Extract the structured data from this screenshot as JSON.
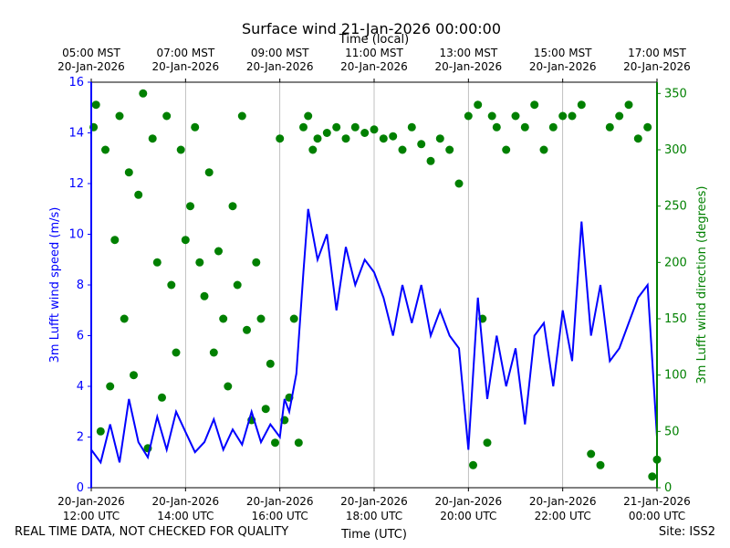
{
  "chart_data": {
    "type": "line+scatter",
    "title": "Surface wind 21-Jan-2026 00:00:00",
    "top_axis_label": "Time (local)",
    "xlabel": "Time (UTC)",
    "ylabel_left": "3m Lufft wind speed (m/s)",
    "ylabel_right": "3m Lufft wind direction (degrees)",
    "x_range_hours": [
      12,
      24
    ],
    "ylim_left": [
      0,
      16
    ],
    "ylim_right": [
      0,
      360
    ],
    "left_ticks": [
      0,
      2,
      4,
      6,
      8,
      10,
      12,
      14,
      16
    ],
    "right_ticks": [
      0,
      50,
      100,
      150,
      200,
      250,
      300,
      350
    ],
    "bottom_ticks": [
      {
        "h": 12,
        "l1": "20-Jan-2026",
        "l2": "12:00 UTC"
      },
      {
        "h": 14,
        "l1": "20-Jan-2026",
        "l2": "14:00 UTC"
      },
      {
        "h": 16,
        "l1": "20-Jan-2026",
        "l2": "16:00 UTC"
      },
      {
        "h": 18,
        "l1": "20-Jan-2026",
        "l2": "18:00 UTC"
      },
      {
        "h": 20,
        "l1": "20-Jan-2026",
        "l2": "20:00 UTC"
      },
      {
        "h": 22,
        "l1": "20-Jan-2026",
        "l2": "22:00 UTC"
      },
      {
        "h": 24,
        "l1": "21-Jan-2026",
        "l2": "00:00 UTC"
      }
    ],
    "top_ticks": [
      {
        "h": 12,
        "l1": "05:00 MST",
        "l2": "20-Jan-2026"
      },
      {
        "h": 14,
        "l1": "07:00 MST",
        "l2": "20-Jan-2026"
      },
      {
        "h": 16,
        "l1": "09:00 MST",
        "l2": "20-Jan-2026"
      },
      {
        "h": 18,
        "l1": "11:00 MST",
        "l2": "20-Jan-2026"
      },
      {
        "h": 20,
        "l1": "13:00 MST",
        "l2": "20-Jan-2026"
      },
      {
        "h": 22,
        "l1": "15:00 MST",
        "l2": "20-Jan-2026"
      },
      {
        "h": 24,
        "l1": "17:00 MST",
        "l2": "20-Jan-2026"
      }
    ],
    "series": [
      {
        "name": "wind speed",
        "axis": "left",
        "style": "line",
        "color": "#0000ff",
        "x": [
          12.0,
          12.2,
          12.4,
          12.6,
          12.8,
          13.0,
          13.2,
          13.4,
          13.6,
          13.8,
          14.0,
          14.2,
          14.4,
          14.6,
          14.8,
          15.0,
          15.2,
          15.4,
          15.6,
          15.8,
          16.0,
          16.1,
          16.2,
          16.35,
          16.5,
          16.6,
          16.8,
          17.0,
          17.2,
          17.4,
          17.6,
          17.8,
          18.0,
          18.2,
          18.4,
          18.6,
          18.8,
          19.0,
          19.2,
          19.4,
          19.6,
          19.8,
          20.0,
          20.2,
          20.4,
          20.6,
          20.8,
          21.0,
          21.2,
          21.4,
          21.6,
          21.8,
          22.0,
          22.2,
          22.4,
          22.6,
          22.8,
          23.0,
          23.2,
          23.4,
          23.6,
          23.8,
          24.0
        ],
        "y": [
          1.5,
          1.0,
          2.5,
          1.0,
          3.5,
          1.8,
          1.2,
          2.8,
          1.5,
          3.0,
          2.2,
          1.4,
          1.8,
          2.7,
          1.5,
          2.3,
          1.7,
          3.0,
          1.8,
          2.5,
          2.0,
          3.5,
          3.0,
          4.5,
          8.5,
          11.0,
          9.0,
          10.0,
          7.0,
          9.5,
          8.0,
          9.0,
          8.5,
          7.5,
          6.0,
          8.0,
          6.5,
          8.0,
          6.0,
          7.0,
          6.0,
          5.5,
          1.5,
          7.5,
          3.5,
          6.0,
          4.0,
          5.5,
          2.5,
          6.0,
          6.5,
          4.0,
          7.0,
          5.0,
          10.5,
          6.0,
          8.0,
          5.0,
          5.5,
          6.5,
          7.5,
          8.0,
          2.0
        ]
      },
      {
        "name": "wind direction",
        "axis": "right",
        "style": "scatter",
        "color": "#008000",
        "x": [
          12.05,
          12.1,
          12.2,
          12.3,
          12.4,
          12.5,
          12.6,
          12.7,
          12.8,
          12.9,
          13.0,
          13.1,
          13.2,
          13.3,
          13.4,
          13.5,
          13.6,
          13.7,
          13.8,
          13.9,
          14.0,
          14.1,
          14.2,
          14.3,
          14.4,
          14.5,
          14.6,
          14.7,
          14.8,
          14.9,
          15.0,
          15.1,
          15.2,
          15.3,
          15.4,
          15.5,
          15.6,
          15.7,
          15.8,
          15.9,
          16.0,
          16.1,
          16.2,
          16.3,
          16.4,
          16.5,
          16.6,
          16.7,
          16.8,
          17.0,
          17.2,
          17.4,
          17.6,
          17.8,
          18.0,
          18.2,
          18.4,
          18.6,
          18.8,
          19.0,
          19.2,
          19.4,
          19.6,
          19.8,
          20.0,
          20.1,
          20.2,
          20.3,
          20.4,
          20.5,
          20.6,
          20.8,
          21.0,
          21.2,
          21.4,
          21.6,
          21.8,
          22.0,
          22.2,
          22.4,
          22.6,
          22.8,
          23.0,
          23.2,
          23.4,
          23.6,
          23.8,
          23.9,
          24.0
        ],
        "y": [
          320,
          340,
          50,
          300,
          90,
          220,
          330,
          150,
          280,
          100,
          260,
          350,
          35,
          310,
          200,
          80,
          330,
          180,
          120,
          300,
          220,
          250,
          320,
          200,
          170,
          280,
          120,
          210,
          150,
          90,
          250,
          180,
          330,
          140,
          60,
          200,
          150,
          70,
          110,
          40,
          310,
          60,
          80,
          150,
          40,
          320,
          330,
          300,
          310,
          315,
          320,
          310,
          320,
          315,
          318,
          310,
          312,
          300,
          320,
          305,
          290,
          310,
          300,
          270,
          330,
          20,
          340,
          150,
          40,
          330,
          320,
          300,
          330,
          320,
          340,
          300,
          320,
          330,
          330,
          340,
          30,
          20,
          320,
          330,
          340,
          310,
          320,
          10,
          25
        ]
      }
    ],
    "annotations": {
      "bottom_left": "REAL TIME DATA, NOT CHECKED FOR QUALITY",
      "bottom_right": "Site: ISS2"
    },
    "colors": {
      "speed": "#0000ff",
      "direction": "#008000",
      "grid": "#b0b0b0",
      "text": "#000000"
    }
  }
}
